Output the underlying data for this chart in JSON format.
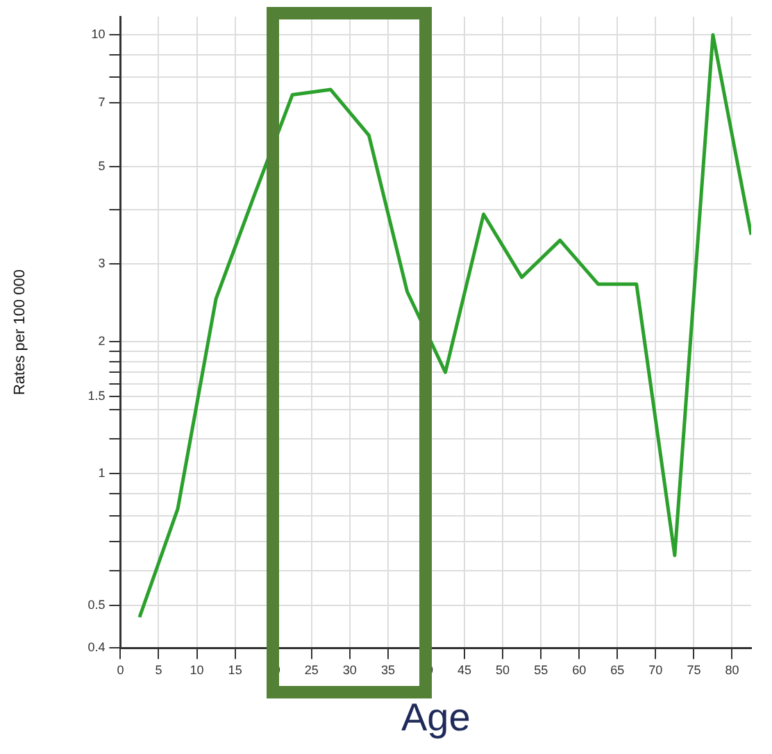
{
  "chart_data": {
    "type": "line",
    "xlabel": "Age",
    "ylabel": "Rates per 100 000",
    "log": "y",
    "grid": true,
    "legend": false,
    "marker": "none",
    "line_style": "solid",
    "x": [
      2.5,
      7.5,
      12.5,
      17.5,
      22.5,
      27.5,
      32.5,
      37.5,
      42.5,
      47.5,
      52.5,
      57.5,
      62.5,
      67.5,
      72.5,
      77.5,
      82.5
    ],
    "series": [
      {
        "color": "#2ca02c",
        "values": [
          0.47,
          0.83,
          2.5,
          4.3,
          7.3,
          7.5,
          5.9,
          2.6,
          1.7,
          3.9,
          2.8,
          3.4,
          2.7,
          2.7,
          0.65,
          10,
          3.5
        ]
      }
    ],
    "xlim": [
      0,
      82.5
    ],
    "xticks": [
      0,
      5,
      10,
      15,
      20,
      25,
      30,
      35,
      40,
      45,
      50,
      55,
      60,
      65,
      70,
      75,
      80
    ],
    "ylim": [
      0.4,
      11
    ],
    "yticks": [
      0.4,
      0.5,
      {
        "value": 0.6,
        "label": null
      },
      {
        "value": 0.7,
        "label": null
      },
      {
        "value": 0.8,
        "label": null
      },
      {
        "value": 0.9,
        "label": null
      },
      1,
      {
        "value": 1.2,
        "label": null
      },
      {
        "value": 1.4,
        "label": null
      },
      1.5,
      {
        "value": 1.6,
        "label": null
      },
      {
        "value": 1.7,
        "label": null
      },
      {
        "value": 1.8,
        "label": null
      },
      {
        "value": 1.9,
        "label": null
      },
      2,
      3,
      {
        "value": 4,
        "label": null
      },
      5,
      7,
      {
        "value": 8,
        "label": null
      },
      {
        "value": 9,
        "label": null
      },
      10
    ]
  }
}
